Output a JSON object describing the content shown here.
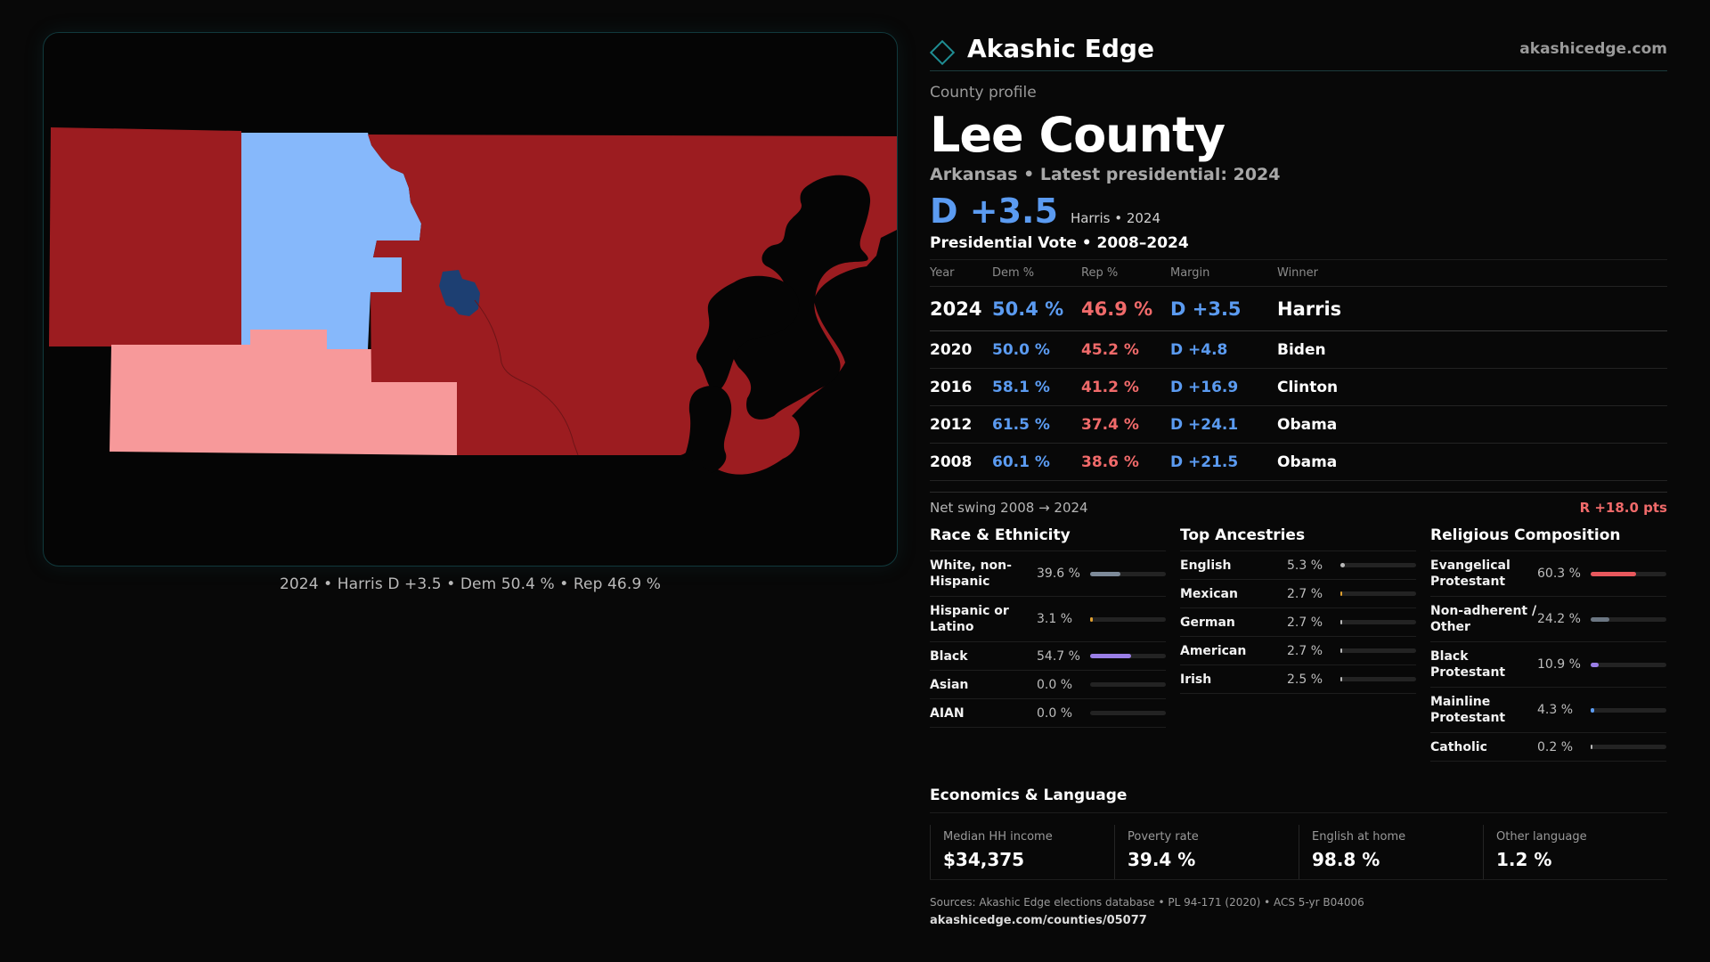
{
  "brand": {
    "name": "Akashic Edge",
    "url": "akashicedge.com"
  },
  "profile": {
    "eyebrow": "County profile",
    "title": "Lee County",
    "subtitle": "Arkansas • Latest presidential: 2024",
    "margin": "D +3.5",
    "margin_note": "Harris • 2024"
  },
  "map": {
    "caption": "2024 • Harris D +3.5 • Dem 50.4 % • Rep 46.9 %",
    "colors": {
      "strong_rep": "#9c1c20",
      "lean_rep": "#f7999a",
      "lean_dem": "#86b8fb",
      "strong_dem": "#1d3f72"
    }
  },
  "votes": {
    "title": "Presidential Vote • 2008–2024",
    "headers": [
      "Year",
      "Dem %",
      "Rep %",
      "Margin",
      "Winner"
    ],
    "rows": [
      [
        "2024",
        "50.4 %",
        "46.9 %",
        "D +3.5",
        "Harris"
      ],
      [
        "2020",
        "50.0 %",
        "45.2 %",
        "D +4.8",
        "Biden"
      ],
      [
        "2016",
        "58.1 %",
        "41.2 %",
        "D +16.9",
        "Clinton"
      ],
      [
        "2012",
        "61.5 %",
        "37.4 %",
        "D +24.1",
        "Obama"
      ],
      [
        "2008",
        "60.1 %",
        "38.6 %",
        "D +21.5",
        "Obama"
      ]
    ]
  },
  "swing": {
    "label": "Net swing 2008 → 2024",
    "value": "R +18.0 pts"
  },
  "race": {
    "title": "Race & Ethnicity",
    "items": [
      {
        "label": "White, non-Hispanic",
        "value": "39.6 %",
        "fraction": 0.396,
        "color": "#7d8a99"
      },
      {
        "label": "Hispanic or Latino",
        "value": "3.1 %",
        "fraction": 0.031,
        "color": "#e0a030"
      },
      {
        "label": "Black",
        "value": "54.7 %",
        "fraction": 0.547,
        "color": "#9a7ee6"
      },
      {
        "label": "Asian",
        "value": "0.0 %",
        "fraction": 0.0,
        "color": "#7d8a99"
      },
      {
        "label": "AIAN",
        "value": "0.0 %",
        "fraction": 0.0,
        "color": "#7d8a99"
      }
    ]
  },
  "ancestry": {
    "title": "Top Ancestries",
    "items": [
      {
        "label": "English",
        "value": "5.3 %",
        "fraction": 0.053,
        "color": "#b9b9b9"
      },
      {
        "label": "Mexican",
        "value": "2.7 %",
        "fraction": 0.027,
        "color": "#e0a030"
      },
      {
        "label": "German",
        "value": "2.7 %",
        "fraction": 0.027,
        "color": "#b9b9b9"
      },
      {
        "label": "American",
        "value": "2.7 %",
        "fraction": 0.027,
        "color": "#b9b9b9"
      },
      {
        "label": "Irish",
        "value": "2.5 %",
        "fraction": 0.025,
        "color": "#b9b9b9"
      }
    ]
  },
  "religion": {
    "title": "Religious Composition",
    "items": [
      {
        "label": "Evangelical Protestant",
        "value": "60.3 %",
        "fraction": 0.603,
        "color": "#e8585d"
      },
      {
        "label": "Non-adherent / Other",
        "value": "24.2 %",
        "fraction": 0.242,
        "color": "#6b7682"
      },
      {
        "label": "Black Protestant",
        "value": "10.9 %",
        "fraction": 0.109,
        "color": "#9a7ee6"
      },
      {
        "label": "Mainline Protestant",
        "value": "4.3 %",
        "fraction": 0.043,
        "color": "#5b9bf1"
      },
      {
        "label": "Catholic",
        "value": "0.2 %",
        "fraction": 0.002,
        "color": "#b9b9b9"
      }
    ]
  },
  "economics": {
    "title": "Economics & Language",
    "cells": [
      {
        "label": "Median HH income",
        "value": "$34,375"
      },
      {
        "label": "Poverty rate",
        "value": "39.4 %"
      },
      {
        "label": "English at home",
        "value": "98.8 %"
      },
      {
        "label": "Other language",
        "value": "1.2 %"
      }
    ]
  },
  "footer": {
    "sources": "Sources: Akashic Edge elections database • PL 94-171 (2020) • ACS 5-yr B04006",
    "url": "akashicedge.com/counties/05077"
  }
}
